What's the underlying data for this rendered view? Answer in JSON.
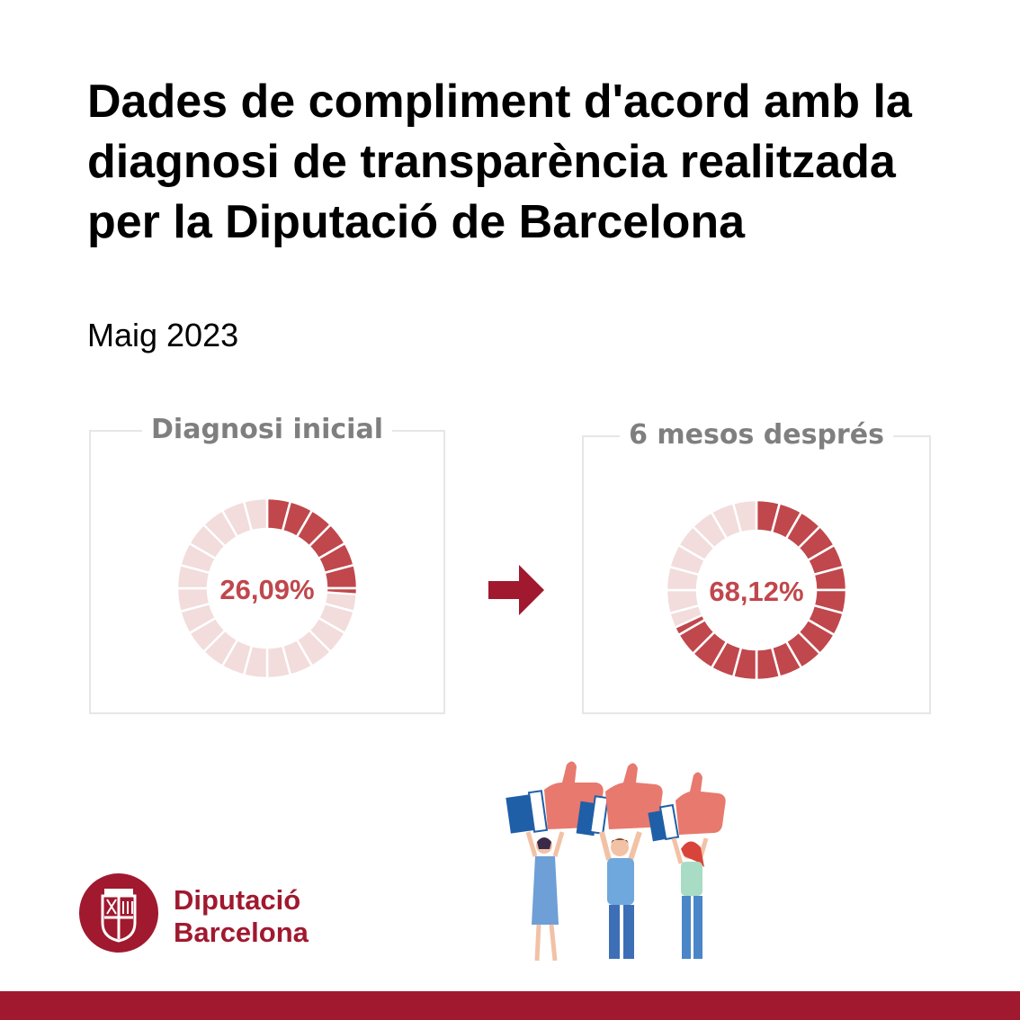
{
  "title": "Dades de compliment d'acord amb la diagnosi de transparència realitzada per la Diputació de Barcelona",
  "subtitle": "Maig 2023",
  "colors": {
    "filled": "#c0474c",
    "empty": "#f2dcdc",
    "percent_text": "#c0474c",
    "panel_label": "#7f7f7f",
    "brand": "#a0192f",
    "arrow": "#a0192f"
  },
  "chart_data": [
    {
      "type": "donut",
      "title": "Diagnosi inicial",
      "value_percent": 26.09,
      "label": "26,09%",
      "segments": 24
    },
    {
      "type": "donut",
      "title": "6 mesos després",
      "value_percent": 68.12,
      "label": "68,12%",
      "segments": 24
    }
  ],
  "logo": {
    "line1": "Diputació",
    "line2": "Barcelona"
  },
  "icons": {
    "arrow": "arrow-right-icon",
    "logo": "diputacio-shield-icon",
    "illustration": "people-thumbs-up-illustration"
  }
}
